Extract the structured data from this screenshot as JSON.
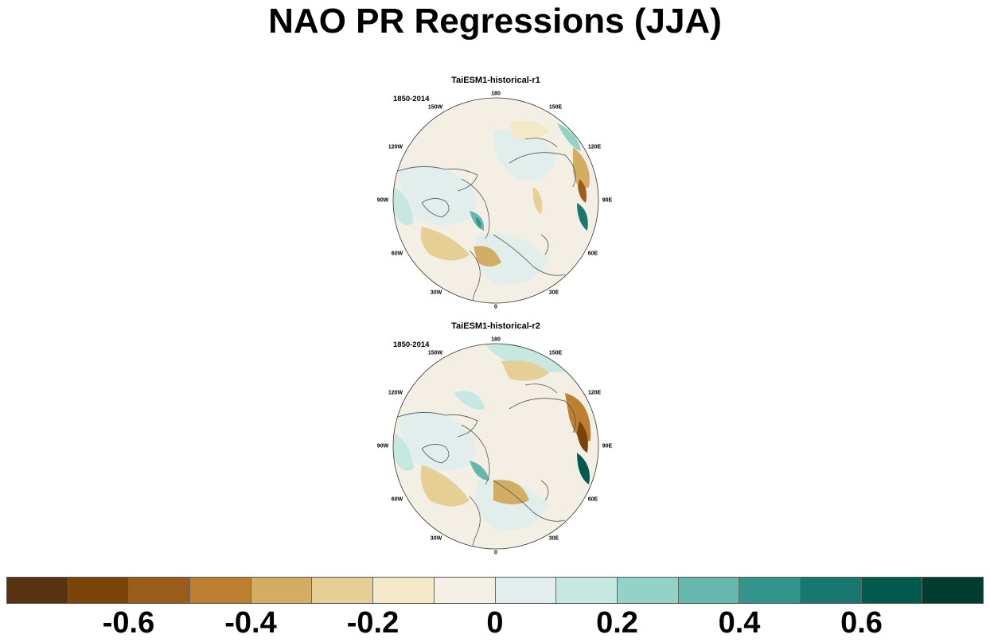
{
  "title": "NAO PR Regressions (JJA)",
  "panels": [
    {
      "title": "TaiESM1-historical-r1",
      "years": "1850-2014",
      "longitude_labels": [
        "180",
        "150E",
        "120E",
        "90E",
        "60E",
        "30E",
        "0",
        "30W",
        "60W",
        "90W",
        "120W",
        "150W"
      ]
    },
    {
      "title": "TaiESM1-historical-r2",
      "years": "1850-2014",
      "longitude_labels": [
        "180",
        "150E",
        "120E",
        "90E",
        "60E",
        "30E",
        "0",
        "30W",
        "60W",
        "90W",
        "120W",
        "150W"
      ]
    }
  ],
  "colorbar": {
    "colors": [
      "#573312",
      "#7a4409",
      "#9b5e1a",
      "#bd8030",
      "#d4ad64",
      "#e6cf95",
      "#f3e8c8",
      "#f4f0e6",
      "#e3efee",
      "#c6e8e1",
      "#93d3c7",
      "#66b8ac",
      "#32948a",
      "#18776e",
      "#005a4e",
      "#003c30"
    ],
    "tick_labels": [
      "-0.6",
      "-0.4",
      "-0.2",
      "0",
      "0.2",
      "0.4",
      "0.6"
    ],
    "tick_values": [
      -0.6,
      -0.4,
      -0.2,
      0,
      0.2,
      0.4,
      0.6
    ],
    "range": [
      -0.8,
      0.8
    ]
  }
}
